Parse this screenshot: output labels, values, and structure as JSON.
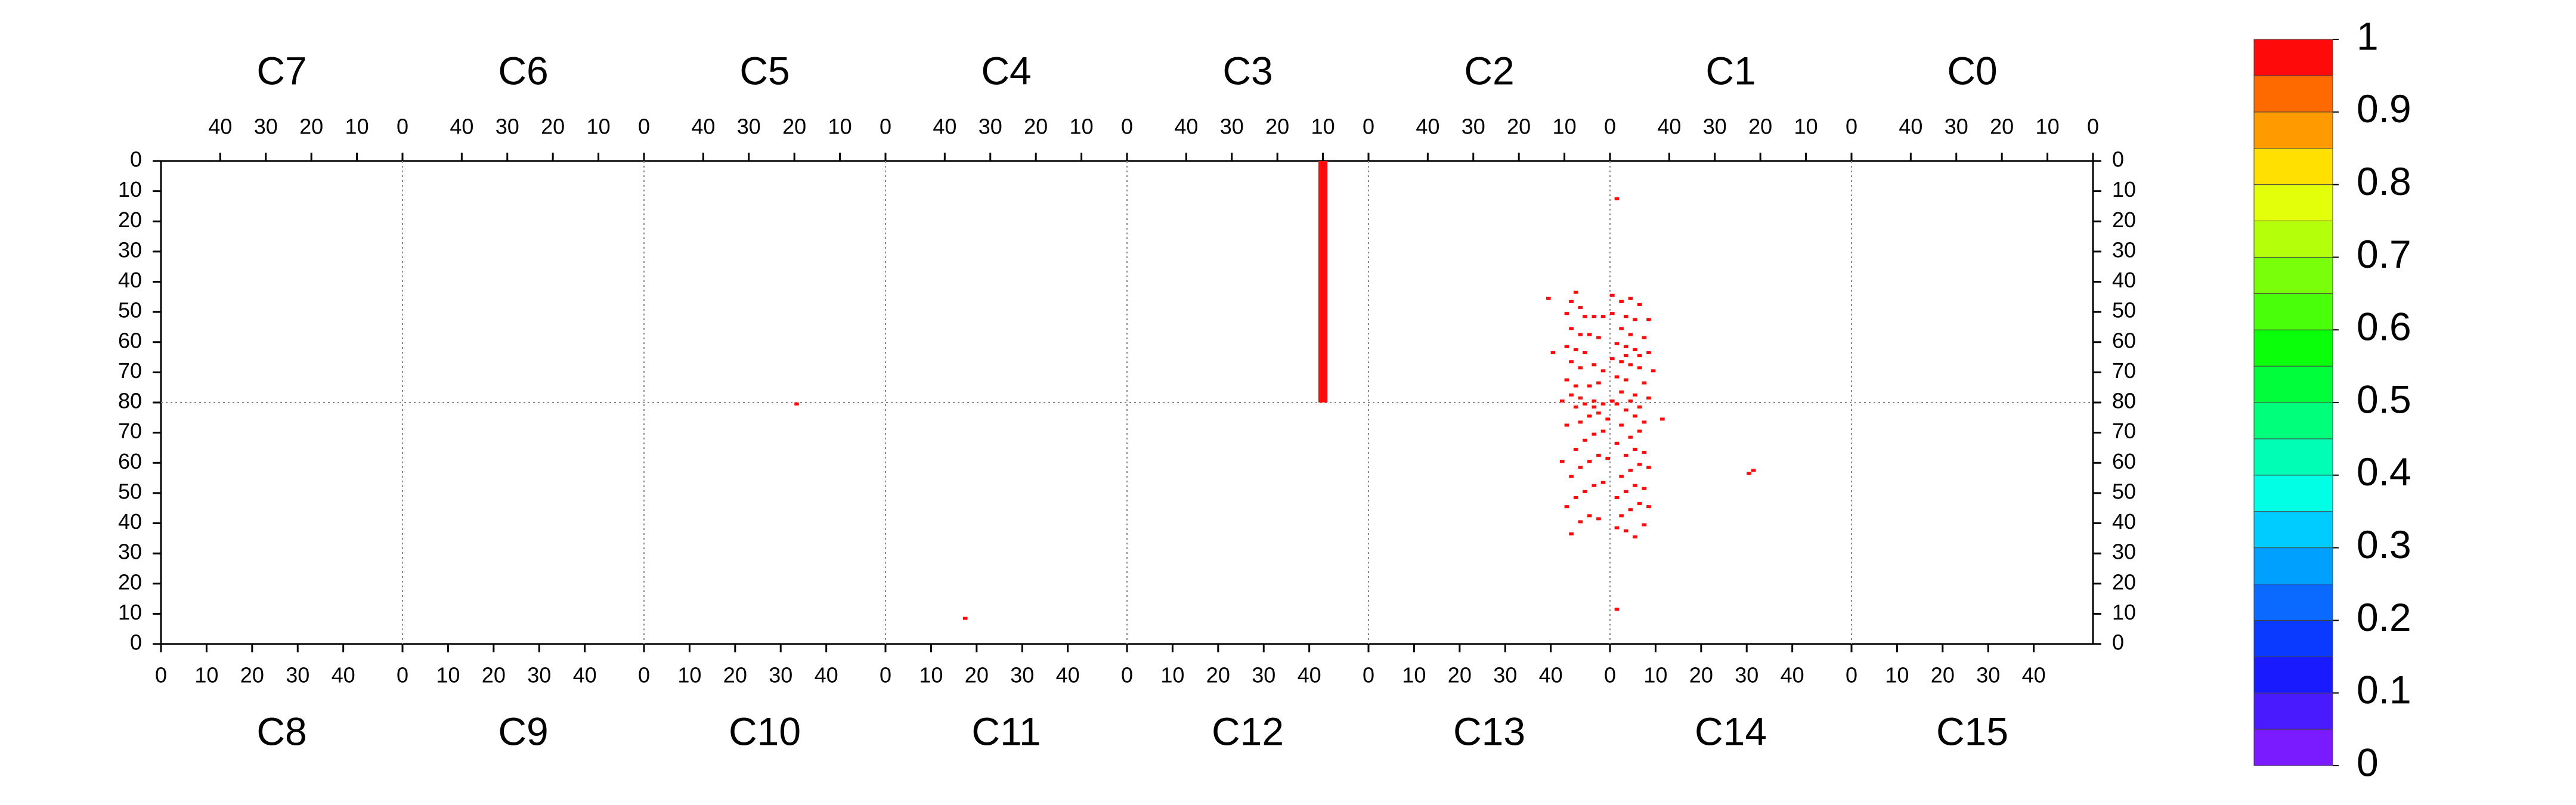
{
  "chart_data": {
    "type": "heatmap",
    "top_row": {
      "xlim": [
        53,
        0
      ],
      "xticks": [
        40,
        30,
        20,
        10,
        0
      ],
      "ylim": [
        0,
        80
      ],
      "yticks": [
        0,
        10,
        20,
        30,
        40,
        50,
        60,
        70,
        80
      ],
      "y_direction": "down",
      "panels": [
        {
          "name": "C7"
        },
        {
          "name": "C6"
        },
        {
          "name": "C5"
        },
        {
          "name": "C4"
        },
        {
          "name": "C3",
          "hits": {
            "x": [
              9
            ],
            "y": [
              0
            ],
            "w": [
              2
            ],
            "h": [
              80
            ],
            "z": [
              1
            ]
          }
        },
        {
          "name": "C2",
          "hits": {
            "x": [
              13,
              7,
              8,
              6,
              9,
              5,
              3,
              1,
              8,
              6,
              4,
              2,
              9,
              7,
              5,
              12,
              8,
              6,
              3,
              1,
              9,
              7,
              4,
              2,
              8,
              6,
              3,
              10
            ],
            "y": [
              45,
              43,
              46,
              48,
              50,
              51,
              51,
              51,
              55,
              57,
              57,
              58,
              61,
              62,
              63,
              63,
              66,
              68,
              67,
              69,
              72,
              74,
              74,
              73,
              77,
              78,
              79,
              79
            ],
            "z": [
              1,
              1,
              1,
              1,
              1,
              1,
              1,
              1,
              1,
              1,
              1,
              1,
              1,
              1,
              1,
              1,
              1,
              1,
              1,
              1,
              1,
              1,
              1,
              1,
              1,
              1,
              1,
              1
            ]
          }
        },
        {
          "name": "C1",
          "hits": {
            "x": [
              51,
              52,
              50,
              48,
              46,
              52,
              49,
              47,
              44,
              50,
              48,
              45,
              51,
              49,
              47,
              44,
              52,
              50,
              48,
              46,
              43,
              51,
              49,
              45,
              50,
              47,
              44,
              52,
              48,
              46,
              49
            ],
            "y": [
              12,
              44,
              46,
              45,
              47,
              50,
              51,
              52,
              52,
              55,
              57,
              58,
              60,
              61,
              62,
              63,
              65,
              66,
              67,
              68,
              69,
              71,
              72,
              73,
              76,
              77,
              78,
              79,
              79,
              64,
              64
            ],
            "z": [
              1,
              1,
              1,
              1,
              1,
              1,
              1,
              1,
              1,
              1,
              1,
              1,
              1,
              1,
              1,
              1,
              1,
              1,
              1,
              1,
              1,
              1,
              1,
              1,
              1,
              1,
              1,
              1,
              1,
              1,
              1
            ]
          }
        },
        {
          "name": "C0"
        }
      ]
    },
    "bottom_row": {
      "xlim": [
        0,
        53
      ],
      "xticks": [
        0,
        10,
        20,
        30,
        40
      ],
      "ylim": [
        0,
        80
      ],
      "yticks": [
        0,
        10,
        20,
        30,
        40,
        50,
        60,
        70,
        80
      ],
      "y_direction": "up",
      "panels": [
        {
          "name": "C8"
        },
        {
          "name": "C9"
        },
        {
          "name": "C10",
          "hits": {
            "x": [
              33
            ],
            "y": [
              79
            ],
            "z": [
              1
            ]
          }
        },
        {
          "name": "C11",
          "hits": {
            "x": [
              17
            ],
            "y": [
              8
            ],
            "z": [
              1
            ]
          }
        },
        {
          "name": "C12"
        },
        {
          "name": "C13",
          "hits": {
            "x": [
              44,
              46,
              48,
              50,
              43,
              45,
              47,
              49,
              51,
              44,
              46,
              48,
              50,
              52,
              45,
              47,
              49,
              51,
              43,
              46,
              48,
              50,
              52,
              45,
              47,
              49,
              51,
              42
            ],
            "y": [
              36,
              40,
              42,
              41,
              45,
              48,
              50,
              52,
              53,
              55,
              58,
              60,
              62,
              61,
              64,
              67,
              69,
              70,
              72,
              73,
              75,
              76,
              74,
              78,
              79,
              78,
              79,
              60
            ],
            "z": [
              1,
              1,
              1,
              1,
              1,
              1,
              1,
              1,
              1,
              1,
              1,
              1,
              1,
              1,
              1,
              1,
              1,
              1,
              1,
              1,
              1,
              1,
              1,
              1,
              1,
              1,
              1,
              1
            ]
          }
        },
        {
          "name": "C14",
          "hits": {
            "x": [
              1,
              1,
              3,
              5,
              7,
              2,
              4,
              6,
              8,
              1,
              3,
              5,
              7,
              2,
              4,
              6,
              8,
              3,
              5,
              7,
              1,
              4,
              6,
              2,
              11,
              5,
              7,
              3,
              6,
              1,
              31,
              30
            ],
            "y": [
              11,
              38,
              37,
              35,
              39,
              42,
              44,
              46,
              45,
              48,
              50,
              52,
              51,
              55,
              57,
              59,
              58,
              62,
              64,
              63,
              66,
              68,
              70,
              72,
              74,
              75,
              73,
              77,
              78,
              79,
              57,
              56
            ],
            "z": [
              1,
              1,
              1,
              1,
              1,
              1,
              1,
              1,
              1,
              1,
              1,
              1,
              1,
              1,
              1,
              1,
              1,
              1,
              1,
              1,
              1,
              1,
              1,
              1,
              1,
              1,
              1,
              1,
              1,
              1,
              1,
              1
            ]
          }
        },
        {
          "name": "C15"
        }
      ]
    },
    "colorbar": {
      "zlim": [
        0,
        1
      ],
      "ticks": [
        0,
        0.1,
        0.2,
        0.3,
        0.4,
        0.5,
        0.6,
        0.7,
        0.8,
        0.9,
        1
      ],
      "colors": [
        "#7a1aff",
        "#4a1aff",
        "#1a1aff",
        "#0a3aff",
        "#0a6aff",
        "#00a0ff",
        "#00ccff",
        "#00ffe4",
        "#00ffb4",
        "#00ff7a",
        "#00ff3a",
        "#0aff0a",
        "#4aff0a",
        "#7aff0a",
        "#b4ff0a",
        "#e4ff0a",
        "#ffe000",
        "#ff9a00",
        "#ff6a00",
        "#ff0a0a"
      ]
    }
  }
}
